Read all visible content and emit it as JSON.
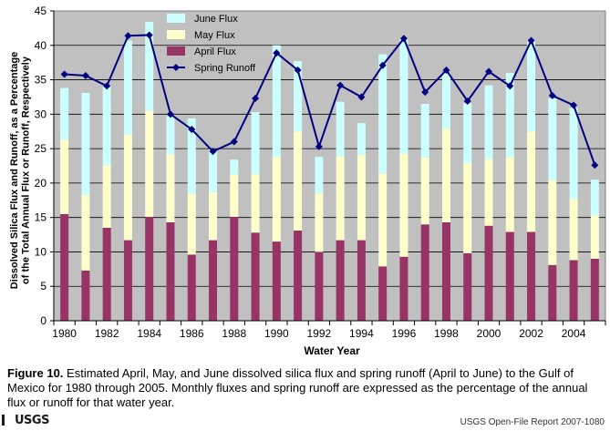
{
  "chart_data": {
    "type": "bar",
    "stacked": true,
    "categories": [
      1980,
      1981,
      1982,
      1983,
      1984,
      1985,
      1986,
      1987,
      1988,
      1989,
      1990,
      1991,
      1992,
      1993,
      1994,
      1995,
      1996,
      1997,
      1998,
      1999,
      2000,
      2001,
      2002,
      2003,
      2004,
      2005
    ],
    "xtick_labels": [
      "1980",
      "1982",
      "1984",
      "1986",
      "1988",
      "1990",
      "1992",
      "1994",
      "1996",
      "1998",
      "2000",
      "2002",
      "2004"
    ],
    "series": [
      {
        "name": "April Flux",
        "color": "#993366",
        "values": [
          15.5,
          7.3,
          13.5,
          11.7,
          15.1,
          14.3,
          9.6,
          11.7,
          15.1,
          12.8,
          11.5,
          13.1,
          10.0,
          11.7,
          11.7,
          7.9,
          9.3,
          14.0,
          14.3,
          9.8,
          13.8,
          12.9,
          12.9,
          8.1,
          8.8,
          9.0
        ]
      },
      {
        "name": "May Flux",
        "color": "#ffffcc",
        "values": [
          10.8,
          10.9,
          9.1,
          15.3,
          15.4,
          9.9,
          8.9,
          7.0,
          6.1,
          8.5,
          12.3,
          14.4,
          8.5,
          12.2,
          12.4,
          13.5,
          15.0,
          9.7,
          13.6,
          13.1,
          9.7,
          10.8,
          14.6,
          12.3,
          8.9,
          6.3
        ]
      },
      {
        "name": "June Flux",
        "color": "#ccffff",
        "values": [
          7.5,
          14.9,
          11.4,
          13.7,
          12.9,
          5.5,
          10.9,
          6.2,
          2.2,
          9.0,
          16.2,
          10.2,
          5.3,
          7.9,
          4.6,
          17.3,
          16.7,
          7.8,
          8.1,
          8.7,
          10.7,
          12.3,
          13.2,
          11.9,
          13.2,
          5.2
        ]
      }
    ],
    "line_series": {
      "name": "Spring Runoff",
      "color": "#000080",
      "values": [
        35.8,
        35.6,
        34.1,
        41.4,
        41.5,
        30.0,
        27.8,
        24.6,
        26.0,
        32.3,
        38.9,
        36.4,
        25.3,
        34.2,
        32.5,
        37.1,
        41.0,
        33.2,
        36.4,
        31.9,
        36.2,
        34.1,
        40.7,
        32.7,
        31.3,
        22.6
      ]
    },
    "title": "",
    "xlabel": "Water Year",
    "ylabel": "Dissolved Silica Flux and Runoff, as a Percentage of the Total Annual Flux or Runoff, Respectively",
    "ylim": [
      0,
      45
    ],
    "yticks": [
      0,
      5,
      10,
      15,
      20,
      25,
      30,
      35,
      40,
      45
    ],
    "grid": true,
    "legend_position": "top-left inside",
    "legend_order": [
      "June Flux",
      "May Flux",
      "April Flux",
      "Spring Runoff"
    ],
    "plot_background": "#c0c0c0"
  },
  "caption": {
    "label": "Figure 10.",
    "text": "Estimated April, May, and June dissolved silica flux and spring runoff (April to June) to the Gulf of Mexico for 1980 through 2005. Monthly fluxes and spring runoff are expressed as the percentage of the annual flux or runoff for that water year."
  },
  "footer": {
    "logo_text": "USGS",
    "report": "USGS Open-File Report 2007-1080"
  }
}
